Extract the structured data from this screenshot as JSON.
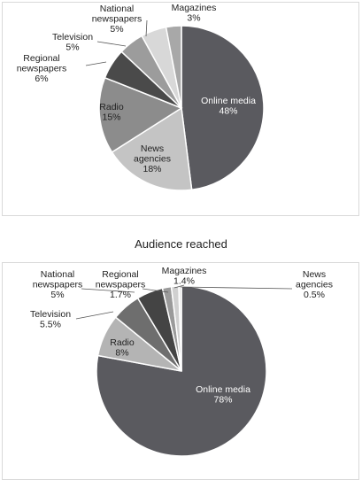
{
  "chart_data": [
    {
      "type": "pie",
      "title": "",
      "slices": [
        {
          "label_lines": [
            "Online media"
          ],
          "value": 48,
          "value_label": "48%",
          "color": "#5a5a5f"
        },
        {
          "label_lines": [
            "News",
            "agencies"
          ],
          "value": 18,
          "value_label": "18%",
          "color": "#c4c4c4"
        },
        {
          "label_lines": [
            "Radio"
          ],
          "value": 15,
          "value_label": "15%",
          "color": "#8c8c8c"
        },
        {
          "label_lines": [
            "Regional",
            "newspapers"
          ],
          "value": 6,
          "value_label": "6%",
          "color": "#4a4a4a"
        },
        {
          "label_lines": [
            "Television"
          ],
          "value": 5,
          "value_label": "5%",
          "color": "#9c9c9c"
        },
        {
          "label_lines": [
            "National",
            "newspapers"
          ],
          "value": 5,
          "value_label": "5%",
          "color": "#d8d8d8"
        },
        {
          "label_lines": [
            "Magazines"
          ],
          "value": 3,
          "value_label": "3%",
          "color": "#a8a8a8"
        }
      ]
    },
    {
      "type": "pie",
      "title": "Audience reached",
      "slices": [
        {
          "label_lines": [
            "Online media"
          ],
          "value": 78,
          "value_label": "78%",
          "color": "#5a5a5f"
        },
        {
          "label_lines": [
            "Radio"
          ],
          "value": 8,
          "value_label": "8%",
          "color": "#b4b4b4"
        },
        {
          "label_lines": [
            "Television"
          ],
          "value": 5.5,
          "value_label": "5.5%",
          "color": "#6e6e6e"
        },
        {
          "label_lines": [
            "National",
            "newspapers"
          ],
          "value": 5,
          "value_label": "5%",
          "color": "#444444"
        },
        {
          "label_lines": [
            "Regional",
            "newspapers"
          ],
          "value": 1.7,
          "value_label": "1.7%",
          "color": "#9a9a9a"
        },
        {
          "label_lines": [
            "Magazines"
          ],
          "value": 1.4,
          "value_label": "1.4%",
          "color": "#d0d0d0"
        },
        {
          "label_lines": [
            "News",
            "agencies"
          ],
          "value": 0.5,
          "value_label": "0.5%",
          "color": "#e6e6e6"
        }
      ]
    }
  ]
}
